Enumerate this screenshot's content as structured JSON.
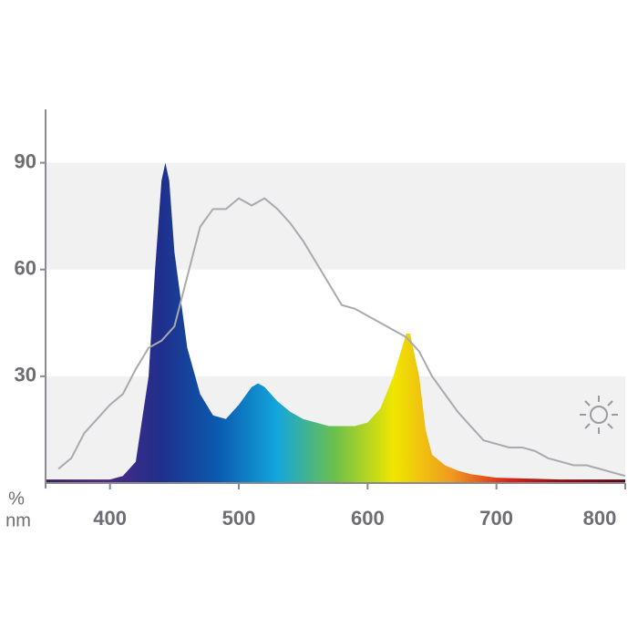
{
  "chart_data": {
    "type": "area",
    "x_unit_label": "nm",
    "y_unit_label": "%",
    "xlim": [
      350,
      800
    ],
    "xticks": [
      400,
      500,
      600,
      700,
      800
    ],
    "ylim": [
      0,
      105
    ],
    "yticks": [
      30,
      60,
      90
    ],
    "grid": "bands",
    "series": [
      {
        "kind": "area",
        "color": [
          "#3a1f5c",
          "#4e2a82",
          "#1f2f8c",
          "#0a5cb0",
          "#14a6dc",
          "#6cc04a",
          "#f0e600",
          "#f09a20",
          "#d8241a",
          "#8a0c10",
          "#5a0818"
        ],
        "x": [
          350,
          360,
          370,
          380,
          390,
          400,
          410,
          420,
          430,
          435,
          440,
          443,
          446,
          450,
          460,
          470,
          480,
          490,
          500,
          510,
          515,
          520,
          530,
          540,
          550,
          560,
          570,
          580,
          590,
          600,
          610,
          620,
          630,
          633,
          640,
          645,
          650,
          660,
          670,
          680,
          700,
          750,
          800
        ],
        "values": [
          1,
          1,
          1,
          1,
          1,
          1,
          2,
          6,
          30,
          60,
          85,
          90,
          85,
          65,
          38,
          25,
          19,
          18,
          22,
          27,
          28,
          27,
          23,
          20,
          18,
          17,
          16,
          16,
          16,
          17,
          21,
          30,
          42,
          42,
          30,
          15,
          8,
          5,
          3.5,
          2.5,
          1.5,
          1,
          1
        ]
      },
      {
        "kind": "line",
        "color": "#a9a9ae",
        "x": [
          360,
          370,
          380,
          390,
          400,
          410,
          420,
          430,
          440,
          450,
          460,
          470,
          480,
          490,
          500,
          510,
          520,
          530,
          540,
          550,
          560,
          570,
          580,
          590,
          600,
          610,
          620,
          630,
          640,
          650,
          660,
          670,
          680,
          690,
          700,
          710,
          720,
          730,
          740,
          750,
          760,
          770,
          780,
          790,
          800
        ],
        "values": [
          4,
          7,
          14,
          18,
          22,
          25,
          32,
          38,
          40,
          44,
          58,
          72,
          77,
          77,
          80,
          78,
          80,
          77,
          73,
          68,
          62,
          56,
          50,
          49,
          47,
          45,
          43,
          41,
          37,
          30,
          25,
          20,
          16,
          12,
          11,
          10,
          10,
          9,
          7,
          6,
          5,
          5,
          4,
          3,
          2
        ]
      }
    ]
  }
}
